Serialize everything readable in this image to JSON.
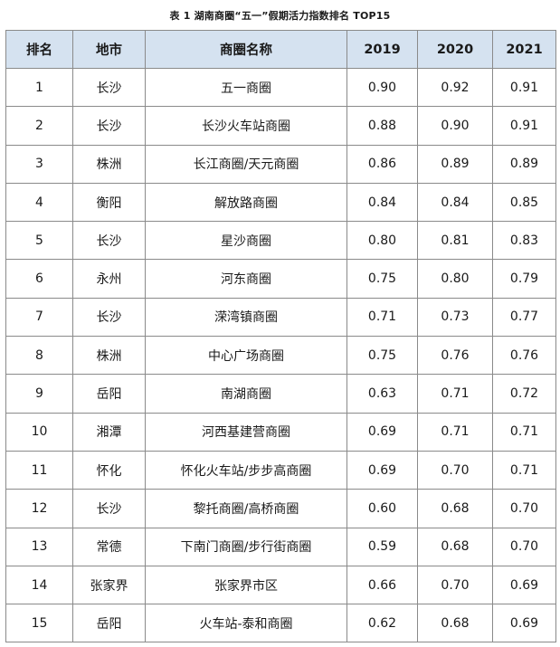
{
  "caption": "表 1  湖南商圈“五一”假期活力指数排名 TOP15",
  "headers": {
    "rank": "排名",
    "city": "地市",
    "name": "商圈名称",
    "y2019": "2019",
    "y2020": "2020",
    "y2021": "2021"
  },
  "rows": [
    {
      "rank": "1",
      "city": "长沙",
      "name": "五一商圈",
      "y2019": "0.90",
      "y2020": "0.92",
      "y2021": "0.91"
    },
    {
      "rank": "2",
      "city": "长沙",
      "name": "长沙火车站商圈",
      "y2019": "0.88",
      "y2020": "0.90",
      "y2021": "0.91"
    },
    {
      "rank": "3",
      "city": "株洲",
      "name": "长江商圈/天元商圈",
      "y2019": "0.86",
      "y2020": "0.89",
      "y2021": "0.89"
    },
    {
      "rank": "4",
      "city": "衡阳",
      "name": "解放路商圈",
      "y2019": "0.84",
      "y2020": "0.84",
      "y2021": "0.85"
    },
    {
      "rank": "5",
      "city": "长沙",
      "name": "星沙商圈",
      "y2019": "0.80",
      "y2020": "0.81",
      "y2021": "0.83"
    },
    {
      "rank": "6",
      "city": "永州",
      "name": "河东商圈",
      "y2019": "0.75",
      "y2020": "0.80",
      "y2021": "0.79"
    },
    {
      "rank": "7",
      "city": "长沙",
      "name": "溁湾镇商圈",
      "y2019": "0.71",
      "y2020": "0.73",
      "y2021": "0.77"
    },
    {
      "rank": "8",
      "city": "株洲",
      "name": "中心广场商圈",
      "y2019": "0.75",
      "y2020": "0.76",
      "y2021": "0.76"
    },
    {
      "rank": "9",
      "city": "岳阳",
      "name": "南湖商圈",
      "y2019": "0.63",
      "y2020": "0.71",
      "y2021": "0.72"
    },
    {
      "rank": "10",
      "city": "湘潭",
      "name": "河西基建营商圈",
      "y2019": "0.69",
      "y2020": "0.71",
      "y2021": "0.71"
    },
    {
      "rank": "11",
      "city": "怀化",
      "name": "怀化火车站/步步高商圈",
      "y2019": "0.69",
      "y2020": "0.70",
      "y2021": "0.71"
    },
    {
      "rank": "12",
      "city": "长沙",
      "name": "黎托商圈/高桥商圈",
      "y2019": "0.60",
      "y2020": "0.68",
      "y2021": "0.70"
    },
    {
      "rank": "13",
      "city": "常德",
      "name": "下南门商圈/步行街商圈",
      "y2019": "0.59",
      "y2020": "0.68",
      "y2021": "0.70"
    },
    {
      "rank": "14",
      "city": "张家界",
      "name": "张家界市区",
      "y2019": "0.66",
      "y2020": "0.70",
      "y2021": "0.69"
    },
    {
      "rank": "15",
      "city": "岳阳",
      "name": "火车站-泰和商圈",
      "y2019": "0.62",
      "y2020": "0.68",
      "y2021": "0.69"
    }
  ],
  "colors": {
    "header_bg": "#d5e2f0",
    "border": "#8a8a8a",
    "text": "#1a1a1a"
  }
}
